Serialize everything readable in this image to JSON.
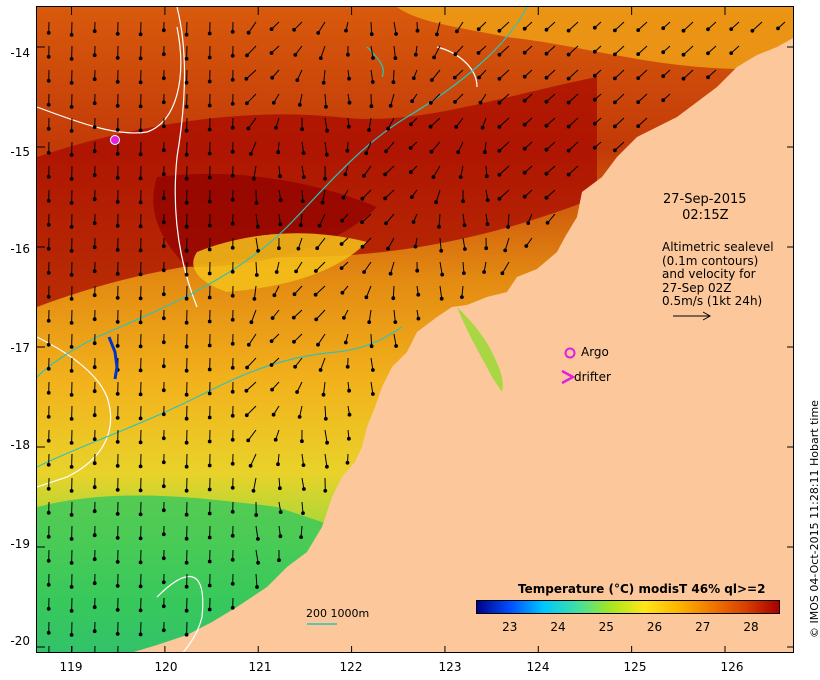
{
  "map": {
    "lat_ticks": [
      "-14",
      "-15",
      "-16",
      "-17",
      "-18",
      "-19",
      "-20"
    ],
    "lon_ticks": [
      "119",
      "120",
      "121",
      "122",
      "123",
      "124",
      "125",
      "126"
    ],
    "lon_range": [
      118.63,
      126.75
    ],
    "lat_range": [
      -20.07,
      -13.6
    ],
    "colors": {
      "land": "#fcc89b",
      "current_vector": "#000000",
      "isobath": "#2fc2b7",
      "sealevel_contour": "#ffffff"
    }
  },
  "annotation": {
    "date_line1": "27-Sep-2015",
    "date_line2": "02:15Z",
    "legend_lines": [
      "Altimetric sealevel",
      "(0.1m contours)",
      "and velocity for",
      "27-Sep 02Z",
      "0.5m/s (1kt 24h)"
    ],
    "argo_label": "Argo",
    "drifter_label": "drifter",
    "bathy_label": "200  1000m",
    "argo_color": "#e020e0",
    "drifter_color": "#e020e0"
  },
  "colorbar": {
    "title": "Temperature (°C) modisT 46% ql>=2",
    "ticks": [
      "23",
      "24",
      "25",
      "26",
      "27",
      "28"
    ],
    "range": [
      22.3,
      28.6
    ],
    "stops": [
      "#00008b",
      "#0050ff",
      "#00c8ff",
      "#40e0a0",
      "#a8e61e",
      "#ffe619",
      "#ffb400",
      "#f07800",
      "#d84000",
      "#a80000"
    ]
  },
  "credit": "© IMOS 04-Oct-2015 11:28:11 Hobart time"
}
